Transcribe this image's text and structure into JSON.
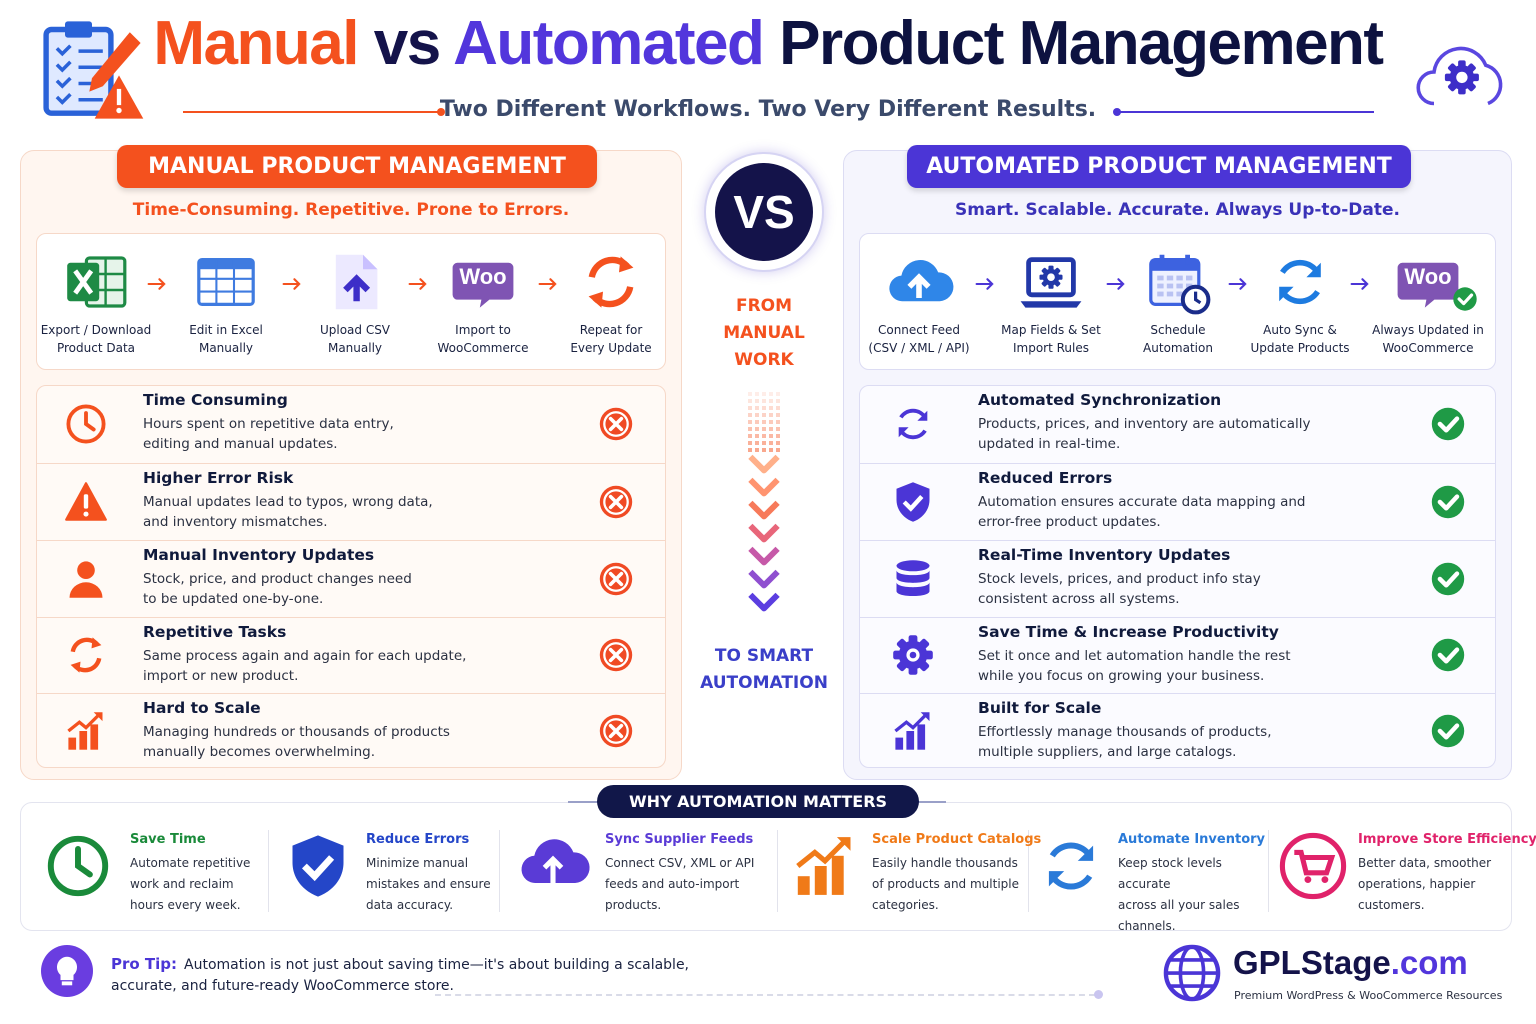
{
  "header": {
    "title": {
      "manual": "Manual",
      "vs": "vs",
      "automated": "Automated",
      "rest": "Product Management"
    },
    "subtitle": "Two Different Workflows. Two Very Different Results."
  },
  "manual": {
    "heading": "MANUAL PRODUCT MANAGEMENT",
    "tagline": "Time-Consuming. Repetitive. Prone to Errors.",
    "steps": [
      {
        "label": "Export / Download\nProduct Data"
      },
      {
        "label": "Edit in Excel\nManually"
      },
      {
        "label": "Upload CSV\nManually"
      },
      {
        "label": "Import to\nWooCommerce",
        "icon_text": "Woo"
      },
      {
        "label": "Repeat for\nEvery Update"
      }
    ],
    "items": [
      {
        "title": "Time Consuming",
        "desc": "Hours spent on repetitive data entry,\nediting and manual updates."
      },
      {
        "title": "Higher Error Risk",
        "desc": "Manual updates lead to typos, wrong data,\nand inventory mismatches."
      },
      {
        "title": "Manual Inventory Updates",
        "desc": "Stock, price, and product changes need\nto be updated one-by-one."
      },
      {
        "title": "Repetitive Tasks",
        "desc": "Same process again and again for each update,\nimport or new product."
      },
      {
        "title": "Hard to Scale",
        "desc": "Managing hundreds or thousands of products\nmanually becomes overwhelming."
      }
    ]
  },
  "vs": {
    "badge": "VS",
    "from": "FROM\nMANUAL\nWORK",
    "to": "TO SMART\nAUTOMATION"
  },
  "automated": {
    "heading": "AUTOMATED PRODUCT MANAGEMENT",
    "tagline": "Smart. Scalable. Accurate. Always Up-to-Date.",
    "steps": [
      {
        "label": "Connect Feed\n(CSV / XML / API)"
      },
      {
        "label": "Map Fields & Set\nImport Rules"
      },
      {
        "label": "Schedule\nAutomation"
      },
      {
        "label": "Auto Sync &\nUpdate Products"
      },
      {
        "label": "Always Updated in\nWooCommerce",
        "icon_text": "Woo"
      }
    ],
    "items": [
      {
        "title": "Automated Synchronization",
        "desc": "Products, prices, and inventory are automatically\nupdated in real-time."
      },
      {
        "title": "Reduced Errors",
        "desc": "Automation ensures accurate data mapping and\nerror-free product updates."
      },
      {
        "title": "Real-Time Inventory Updates",
        "desc": "Stock levels, prices, and product info stay\nconsistent across all systems."
      },
      {
        "title": "Save Time & Increase Productivity",
        "desc": "Set it once and let automation handle the rest\nwhile you focus on growing your business."
      },
      {
        "title": "Built for Scale",
        "desc": "Effortlessly manage thousands of products,\nmultiple suppliers, and large catalogs."
      }
    ]
  },
  "why": {
    "heading": "WHY AUTOMATION MATTERS",
    "items": [
      {
        "title": "Save Time",
        "desc": "Automate repetitive\nwork and reclaim\nhours every week."
      },
      {
        "title": "Reduce Errors",
        "desc": "Minimize manual\nmistakes and ensure\ndata accuracy."
      },
      {
        "title": "Sync Supplier Feeds",
        "desc": "Connect CSV, XML or API\nfeeds and auto-import\nproducts."
      },
      {
        "title": "Scale Product Catalogs",
        "desc": "Easily handle thousands\nof products and multiple\ncategories."
      },
      {
        "title": "Automate Inventory",
        "desc": "Keep stock levels accurate\nacross all your sales\nchannels."
      },
      {
        "title": "Improve Store Efficiency",
        "desc": "Better data, smoother\noperations, happier\ncustomers."
      }
    ]
  },
  "footer": {
    "pro_tip": {
      "label": "Pro Tip:",
      "text": "Automation is not just about saving time—it's about building a scalable,\naccurate, and future-ready WooCommerce store."
    },
    "brand": {
      "name": "GPLStage",
      "suffix": ".com",
      "tagline": "Premium WordPress & WooCommerce Resources"
    }
  }
}
